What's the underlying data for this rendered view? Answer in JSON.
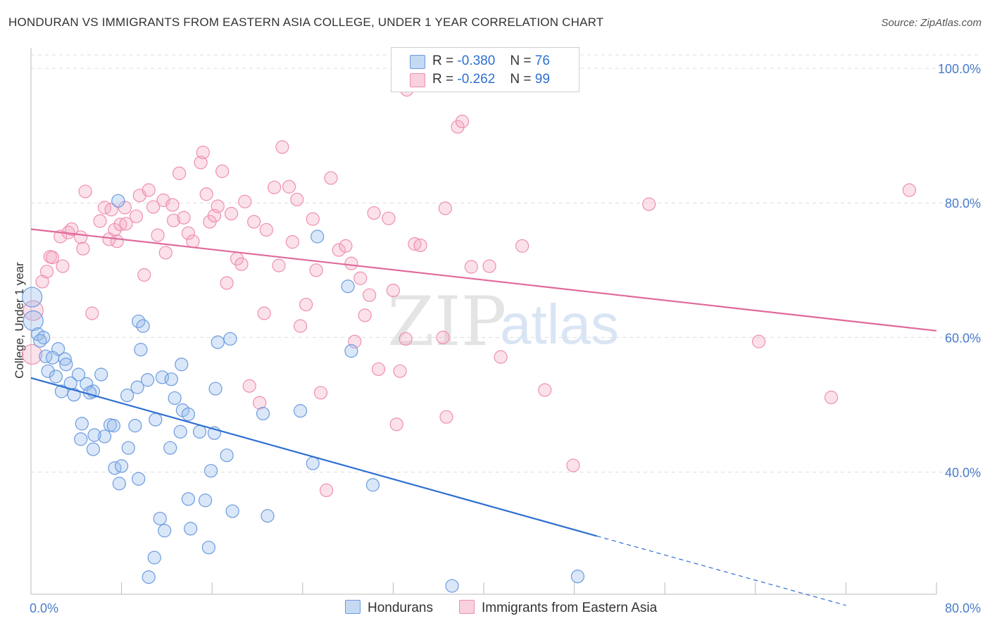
{
  "title": "HONDURAN VS IMMIGRANTS FROM EASTERN ASIA COLLEGE, UNDER 1 YEAR CORRELATION CHART",
  "source": "Source: ZipAtlas.com",
  "watermark": {
    "zip": "ZIP",
    "atlas": "atlas"
  },
  "legend": {
    "r_label": "R =",
    "n_label": "N =",
    "series1": {
      "r": "-0.380",
      "n": "76"
    },
    "series2": {
      "r": "-0.262",
      "n": "99"
    }
  },
  "bottom_legend": {
    "series1": "Hondurans",
    "series2": "Immigrants from Eastern Asia"
  },
  "chart_data": {
    "type": "scatter",
    "title": "HONDURAN VS IMMIGRANTS FROM EASTERN ASIA COLLEGE, UNDER 1 YEAR CORRELATION CHART",
    "xlabel": "",
    "ylabel": "College, Under 1 year",
    "xlim": [
      0,
      80
    ],
    "ylim": [
      20,
      104
    ],
    "x_tick_labels": [
      "0.0%",
      "80.0%"
    ],
    "y_ticks": [
      40,
      60,
      80,
      100
    ],
    "y_tick_labels": [
      "40.0%",
      "60.0%",
      "80.0%",
      "100.0%"
    ],
    "grid": true,
    "legend_position": "top-center",
    "colors": {
      "series1": "#6b9be0",
      "series2": "#ef8fb0",
      "line1": "#2e6fd1",
      "line2": "#e0699a"
    },
    "series": [
      {
        "name": "Hondurans",
        "r": -0.38,
        "n": 76,
        "trend": {
          "x0": 0,
          "y0": 54.0,
          "x1": 50,
          "y1": 30.5,
          "dash_to_x": 72,
          "dash_to_y": 20.2
        },
        "points": [
          [
            0.1,
            66
          ],
          [
            0.2,
            62.5
          ],
          [
            0.6,
            60.5
          ],
          [
            1.1,
            60
          ],
          [
            0.8,
            59.5
          ],
          [
            2.4,
            58.3
          ],
          [
            1.3,
            57.2
          ],
          [
            1.9,
            57
          ],
          [
            3,
            56.8
          ],
          [
            3.1,
            56
          ],
          [
            1.5,
            55
          ],
          [
            2.2,
            54.2
          ],
          [
            4.2,
            54.5
          ],
          [
            6.2,
            54.5
          ],
          [
            4.9,
            53.1
          ],
          [
            3.5,
            53.2
          ],
          [
            2.7,
            52
          ],
          [
            3.8,
            51.5
          ],
          [
            5.5,
            52
          ],
          [
            5.2,
            51.8
          ],
          [
            8.5,
            51.4
          ],
          [
            9.4,
            52.6
          ],
          [
            10.3,
            53.7
          ],
          [
            11.6,
            54.1
          ],
          [
            12.4,
            53.8
          ],
          [
            13.3,
            56
          ],
          [
            12.7,
            51
          ],
          [
            13.4,
            49.2
          ],
          [
            13.9,
            48.6
          ],
          [
            11,
            47.8
          ],
          [
            9.2,
            46.9
          ],
          [
            7,
            47
          ],
          [
            6.5,
            45.3
          ],
          [
            4.5,
            47.2
          ],
          [
            4.4,
            44.9
          ],
          [
            5.6,
            45.5
          ],
          [
            7.3,
            46.9
          ],
          [
            5.5,
            43.4
          ],
          [
            8.6,
            43.6
          ],
          [
            12.3,
            43.6
          ],
          [
            13.2,
            46
          ],
          [
            14.9,
            46
          ],
          [
            16.2,
            45.8
          ],
          [
            17.3,
            42.5
          ],
          [
            15.9,
            40.2
          ],
          [
            7.4,
            40.6
          ],
          [
            8,
            40.9
          ],
          [
            7.8,
            38.3
          ],
          [
            9.5,
            39
          ],
          [
            13.9,
            36
          ],
          [
            15.4,
            35.8
          ],
          [
            17.8,
            34.2
          ],
          [
            20.9,
            33.5
          ],
          [
            11.4,
            33.1
          ],
          [
            14.1,
            31.6
          ],
          [
            11.8,
            31.3
          ],
          [
            15.7,
            28.8
          ],
          [
            10.9,
            27.3
          ],
          [
            10.4,
            24.4
          ],
          [
            20.5,
            48.7
          ],
          [
            23.8,
            49.1
          ],
          [
            24.9,
            41.3
          ],
          [
            30.2,
            38.1
          ],
          [
            16.3,
            52.4
          ],
          [
            16.5,
            59.3
          ],
          [
            17.6,
            59.8
          ],
          [
            28.3,
            58
          ],
          [
            28,
            67.6
          ],
          [
            25.3,
            75
          ],
          [
            9.5,
            62.4
          ],
          [
            9.9,
            61.7
          ],
          [
            9.7,
            58.2
          ],
          [
            7.7,
            80.3
          ],
          [
            48.3,
            24.5
          ],
          [
            37.2,
            23.1
          ]
        ]
      },
      {
        "name": "Immigrants from Eastern Asia",
        "r": -0.262,
        "n": 99,
        "trend": {
          "x0": 0,
          "y0": 76.1,
          "x1": 80,
          "y1": 61.0
        },
        "points": [
          [
            0.1,
            57.5
          ],
          [
            0.2,
            64
          ],
          [
            1,
            68.3
          ],
          [
            1.4,
            69.8
          ],
          [
            1.7,
            72
          ],
          [
            1.9,
            71.9
          ],
          [
            2.8,
            70.6
          ],
          [
            2.6,
            75
          ],
          [
            3.3,
            75.6
          ],
          [
            3.6,
            76.1
          ],
          [
            4.4,
            74.9
          ],
          [
            4.6,
            73.2
          ],
          [
            4.8,
            81.7
          ],
          [
            5.4,
            63.6
          ],
          [
            6.1,
            77.3
          ],
          [
            6.5,
            79.3
          ],
          [
            7.1,
            79
          ],
          [
            7.4,
            76
          ],
          [
            7.6,
            74.3
          ],
          [
            7.9,
            76.8
          ],
          [
            8.3,
            79.3
          ],
          [
            8.4,
            76.9
          ],
          [
            9.3,
            78
          ],
          [
            9.6,
            81.1
          ],
          [
            10,
            69.3
          ],
          [
            10.4,
            81.9
          ],
          [
            10.8,
            79.4
          ],
          [
            11.2,
            75.2
          ],
          [
            11.7,
            80.4
          ],
          [
            11.9,
            72.6
          ],
          [
            12.5,
            79.7
          ],
          [
            12.6,
            77.4
          ],
          [
            13.1,
            84.4
          ],
          [
            13.5,
            77.8
          ],
          [
            13.9,
            75.5
          ],
          [
            14.3,
            74.3
          ],
          [
            15,
            86
          ],
          [
            15.2,
            87.5
          ],
          [
            15.5,
            81.3
          ],
          [
            15.8,
            77.2
          ],
          [
            16.2,
            78.1
          ],
          [
            16.5,
            79.5
          ],
          [
            16.9,
            84.7
          ],
          [
            17.3,
            68.1
          ],
          [
            17.7,
            78.4
          ],
          [
            18.2,
            71.7
          ],
          [
            18.6,
            70.9
          ],
          [
            18.9,
            80.2
          ],
          [
            19.3,
            52.8
          ],
          [
            19.7,
            77.2
          ],
          [
            20.2,
            50.3
          ],
          [
            20.6,
            63.6
          ],
          [
            20.8,
            76
          ],
          [
            21.5,
            82.3
          ],
          [
            21.9,
            70.7
          ],
          [
            22.2,
            88.3
          ],
          [
            22.8,
            82.4
          ],
          [
            23.1,
            74.2
          ],
          [
            23.5,
            80.5
          ],
          [
            23.8,
            61.7
          ],
          [
            24.3,
            64.9
          ],
          [
            24.9,
            77.6
          ],
          [
            25.2,
            70
          ],
          [
            25.6,
            51.8
          ],
          [
            26.1,
            37.3
          ],
          [
            26.5,
            83.7
          ],
          [
            27.2,
            73
          ],
          [
            27.8,
            73.6
          ],
          [
            28.3,
            71
          ],
          [
            28.6,
            59.4
          ],
          [
            29.1,
            68.8
          ],
          [
            29.5,
            63.3
          ],
          [
            29.9,
            66.3
          ],
          [
            30.3,
            78.5
          ],
          [
            30.7,
            55.3
          ],
          [
            31.6,
            77.7
          ],
          [
            32,
            67
          ],
          [
            32.3,
            47.1
          ],
          [
            32.6,
            55
          ],
          [
            33.1,
            59.8
          ],
          [
            33.9,
            73.9
          ],
          [
            34.4,
            73.7
          ],
          [
            36.4,
            60
          ],
          [
            36.6,
            79.2
          ],
          [
            36.7,
            48.2
          ],
          [
            37.7,
            91.3
          ],
          [
            38.1,
            92.1
          ],
          [
            38.9,
            70.5
          ],
          [
            40.5,
            70.6
          ],
          [
            41.5,
            57.1
          ],
          [
            43.4,
            73.6
          ],
          [
            45.4,
            52.2
          ],
          [
            47.9,
            41
          ],
          [
            54.6,
            79.8
          ],
          [
            64.3,
            59.4
          ],
          [
            70.7,
            51.1
          ],
          [
            77.6,
            81.9
          ],
          [
            33.2,
            96.8
          ],
          [
            6.9,
            74.6
          ]
        ]
      }
    ]
  }
}
